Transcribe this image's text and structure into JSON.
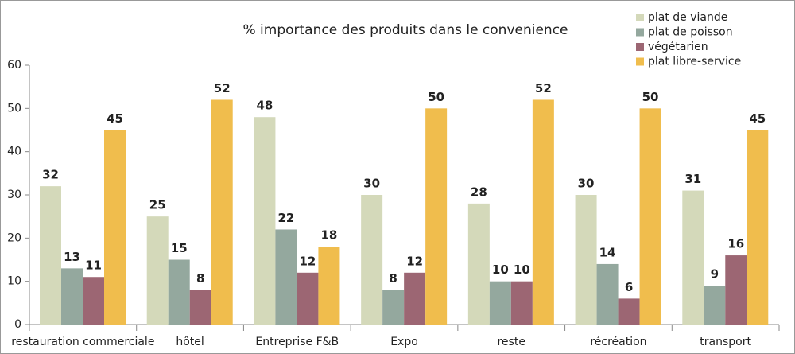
{
  "chart_data": {
    "type": "bar",
    "title": "% importance des produits dans le convenience",
    "categories": [
      "restauration commerciale",
      "hôtel",
      "Entreprise F&B",
      "Expo",
      "reste",
      "récréation",
      "transport"
    ],
    "series": [
      {
        "name": "plat de viande",
        "color": "#d4d9ba",
        "values": [
          32,
          25,
          48,
          30,
          28,
          30,
          31
        ]
      },
      {
        "name": "plat de poisson",
        "color": "#94a89e",
        "values": [
          13,
          15,
          22,
          8,
          10,
          14,
          9
        ]
      },
      {
        "name": "végétarien",
        "color": "#9c6673",
        "values": [
          11,
          8,
          12,
          12,
          10,
          6,
          16
        ]
      },
      {
        "name": "plat libre-service",
        "color": "#f0bd4d",
        "values": [
          45,
          52,
          18,
          50,
          52,
          50,
          45
        ]
      }
    ],
    "ylim": [
      0,
      60
    ],
    "yticks": [
      0,
      10,
      20,
      30,
      40,
      50,
      60
    ],
    "legend": "top-right"
  }
}
